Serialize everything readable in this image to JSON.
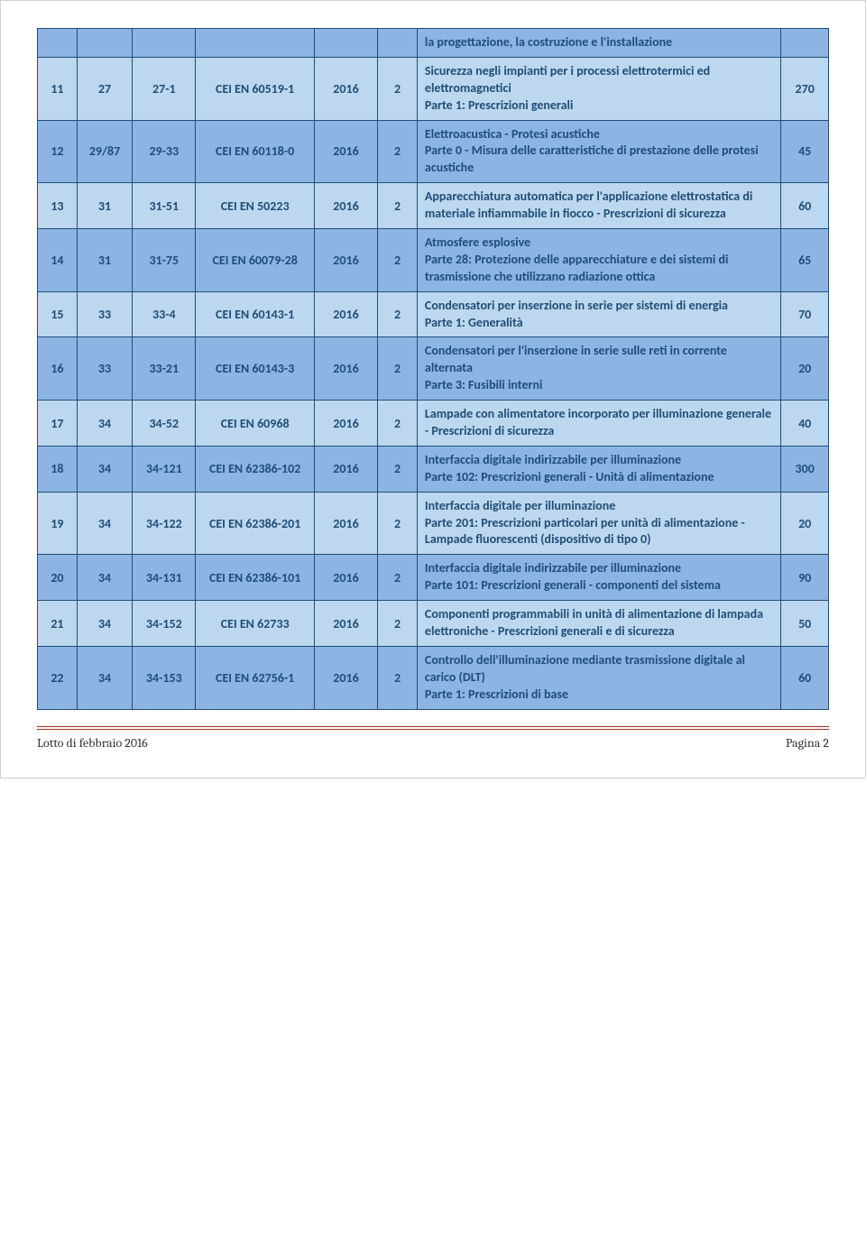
{
  "header_desc": "la progettazione, la costruzione e l'installazione",
  "rows": [
    {
      "shade": "light",
      "c1": "11",
      "c2": "27",
      "c3": "27-1",
      "c4": "CEI EN 60519-1",
      "c5": "2016",
      "c6": "2",
      "desc": "Sicurezza negli impianti per i processi elettrotermici ed elettromagnetici\nParte 1: Prescrizioni generali",
      "c8": "270"
    },
    {
      "shade": "dark",
      "c1": "12",
      "c2": "29/87",
      "c3": "29-33",
      "c4": "CEI EN 60118-0",
      "c5": "2016",
      "c6": "2",
      "desc": "Elettroacustica - Protesi acustiche\nParte 0 - Misura delle caratteristiche di prestazione delle protesi acustiche",
      "c8": "45"
    },
    {
      "shade": "light",
      "c1": "13",
      "c2": "31",
      "c3": "31-51",
      "c4": "CEI EN 50223",
      "c5": "2016",
      "c6": "2",
      "desc": "Apparecchiatura automatica per l'applicazione elettrostatica di materiale infiammabile in fiocco - Prescrizioni di sicurezza",
      "c8": "60"
    },
    {
      "shade": "dark",
      "c1": "14",
      "c2": "31",
      "c3": "31-75",
      "c4": "CEI EN 60079-28",
      "c5": "2016",
      "c6": "2",
      "desc": "Atmosfere esplosive\nParte 28: Protezione delle apparecchiature e dei sistemi di trasmissione che utilizzano radiazione ottica",
      "c8": "65"
    },
    {
      "shade": "light",
      "c1": "15",
      "c2": "33",
      "c3": "33-4",
      "c4": "CEI EN 60143-1",
      "c5": "2016",
      "c6": "2",
      "desc": "Condensatori per inserzione in serie per sistemi di energia\nParte 1: Generalità",
      "c8": "70"
    },
    {
      "shade": "dark",
      "c1": "16",
      "c2": "33",
      "c3": "33-21",
      "c4": "CEI EN 60143-3",
      "c5": "2016",
      "c6": "2",
      "desc": "Condensatori per l'inserzione in serie sulle reti in corrente alternata\nParte 3: Fusibili interni",
      "c8": "20"
    },
    {
      "shade": "light",
      "c1": "17",
      "c2": "34",
      "c3": "34-52",
      "c4": "CEI EN 60968",
      "c5": "2016",
      "c6": "2",
      "desc": "Lampade con alimentatore incorporato per illuminazione generale - Prescrizioni di sicurezza",
      "c8": "40"
    },
    {
      "shade": "dark",
      "c1": "18",
      "c2": "34",
      "c3": "34-121",
      "c4": "CEI EN 62386-102",
      "c5": "2016",
      "c6": "2",
      "desc": "Interfaccia digitale indirizzabile per illuminazione\nParte 102: Prescrizioni generali - Unità di alimentazione",
      "c8": "300"
    },
    {
      "shade": "light",
      "c1": "19",
      "c2": "34",
      "c3": "34-122",
      "c4": "CEI EN 62386-201",
      "c5": "2016",
      "c6": "2",
      "desc": "Interfaccia digitale per illuminazione\nParte 201: Prescrizioni particolari per unità di alimentazione - Lampade fluorescenti (dispositivo di tipo 0)",
      "c8": "20"
    },
    {
      "shade": "dark",
      "c1": "20",
      "c2": "34",
      "c3": "34-131",
      "c4": "CEI EN 62386-101",
      "c5": "2016",
      "c6": "2",
      "desc": "Interfaccia digitale indirizzabile per illuminazione\nParte 101: Prescrizioni generali - componenti del sistema",
      "c8": "90"
    },
    {
      "shade": "light",
      "c1": "21",
      "c2": "34",
      "c3": "34-152",
      "c4": "CEI EN 62733",
      "c5": "2016",
      "c6": "2",
      "desc": "Componenti programmabili in unità di alimentazione di lampada elettroniche - Prescrizioni generali e di sicurezza",
      "c8": "50"
    },
    {
      "shade": "dark",
      "c1": "22",
      "c2": "34",
      "c3": "34-153",
      "c4": "CEI EN 62756-1",
      "c5": "2016",
      "c6": "2",
      "desc": "Controllo dell'illuminazione mediante trasmissione digitale al carico (DLT)\nParte 1: Prescrizioni di base",
      "c8": "60"
    }
  ],
  "footer_left": "Lotto di febbraio 2016",
  "footer_right": "Pagina 2"
}
